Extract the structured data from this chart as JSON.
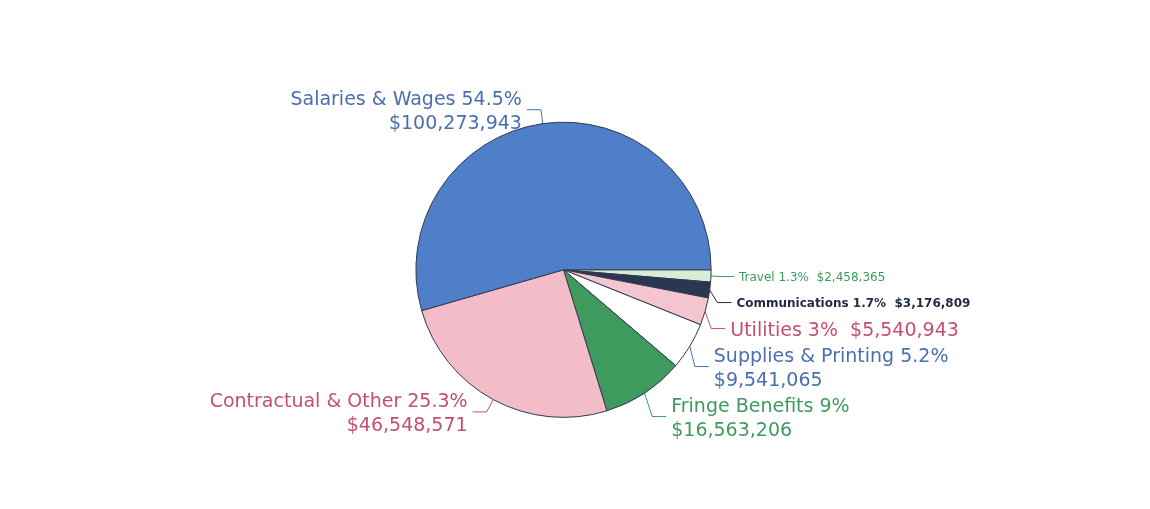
{
  "chart_data": {
    "type": "pie",
    "categories": [
      "Travel",
      "Communications",
      "Utilities",
      "Supplies & Printing",
      "Fringe Benefits",
      "Contractual & Other",
      "Salaries & Wages"
    ],
    "values": [
      2458365,
      3176809,
      5540943,
      9541065,
      16563206,
      46548571,
      100273943
    ],
    "value_labels": [
      "1.3%  $2,458,365",
      "1.7%  $3,176,809",
      "3%  $5,540,943",
      "5.2%\n$9,541,065",
      "9%\n$16,563,206",
      "25.3%\n$46,548,571",
      "54.5%\n$100,273,943"
    ],
    "colors": [
      "#d9ecd6",
      "#2b3652",
      "#f3c6cf",
      "#ffffff",
      "#3f9a5e",
      "#f2bcc8",
      "#4f7fc8"
    ],
    "legend": false
  }
}
